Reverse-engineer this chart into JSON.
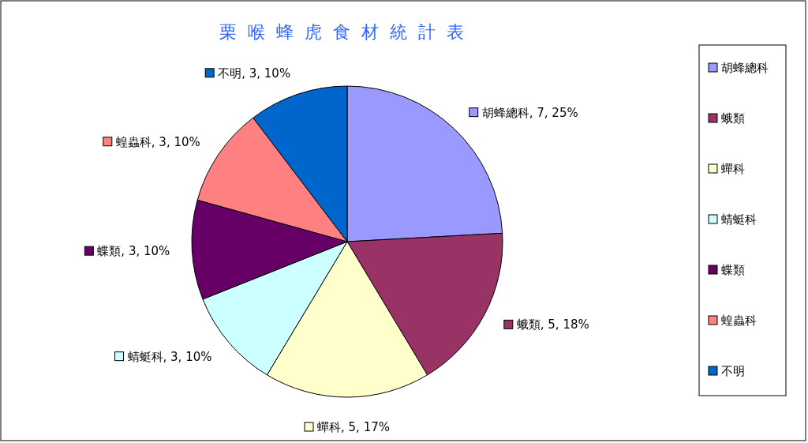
{
  "chart_data": {
    "type": "pie",
    "title": "栗喉蜂虎食材統計表",
    "categories": [
      "胡蜂總科",
      "蛾類",
      "蟬科",
      "蜻蜓科",
      "蝶類",
      "蝗蟲科",
      "不明"
    ],
    "values": [
      7,
      5,
      5,
      3,
      3,
      3,
      3
    ],
    "value_labels": [
      "胡蜂總科, 7, 25%",
      "蛾類, 5, 18%",
      "蟬科, 5, 17%",
      "蜻蜓科, 3, 10%",
      "蝶類, 3, 10%",
      "蝗蟲科, 3, 10%",
      "不明, 3, 10%"
    ],
    "colors": [
      "#9999ff",
      "#993366",
      "#ffffcc",
      "#ccffff",
      "#660066",
      "#ff8080",
      "#0066cc"
    ],
    "legend": "right"
  }
}
